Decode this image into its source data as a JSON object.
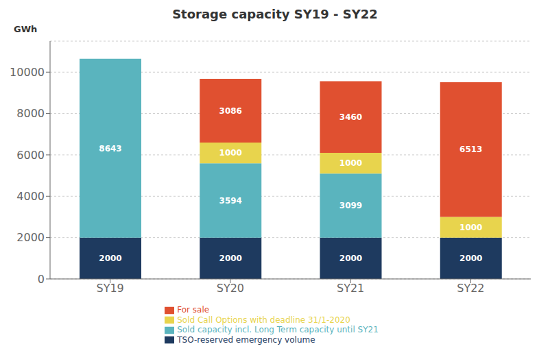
{
  "chart_data": {
    "type": "bar",
    "stacked": true,
    "title": "Storage capacity  SY19 - SY22",
    "ylabel": "GWh",
    "categories": [
      "SY19",
      "SY20",
      "SY21",
      "SY22"
    ],
    "series": [
      {
        "name": "TSO-reserved emergency volume",
        "color": "#1e3a5f",
        "values": [
          2000,
          2000,
          2000,
          2000
        ]
      },
      {
        "name": "Sold capacity incl. Long Term capacity until SY21",
        "color": "#5ab4be",
        "values": [
          8643,
          3594,
          3099,
          0
        ]
      },
      {
        "name": "Sold Call Options with deadline 31/1-2020",
        "color": "#e8d44d",
        "values": [
          0,
          1000,
          1000,
          1000
        ]
      },
      {
        "name": "For sale",
        "color": "#e05030",
        "values": [
          0,
          3086,
          3460,
          6513
        ]
      }
    ],
    "ylim": [
      0,
      11500
    ],
    "yticks": [
      0,
      2000,
      4000,
      6000,
      8000,
      10000
    ],
    "grid": true,
    "legend": "bottom",
    "data_labels": true
  }
}
